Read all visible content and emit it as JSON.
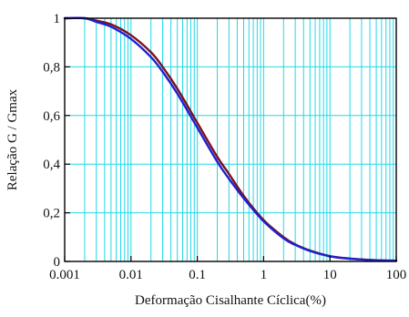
{
  "chart_data": {
    "type": "line",
    "title": "",
    "xlabel": "Deformação Cisalhante Cíclica(%)",
    "ylabel": "Relação G / Gmax",
    "x_scale": "log",
    "xlim": [
      0.001,
      100
    ],
    "ylim": [
      0,
      1
    ],
    "grid": true,
    "x_ticks": [
      {
        "value": 0.001,
        "label": "0.001"
      },
      {
        "value": 0.01,
        "label": "0.01"
      },
      {
        "value": 0.1,
        "label": "0.1"
      },
      {
        "value": 1,
        "label": "1"
      },
      {
        "value": 10,
        "label": "10"
      },
      {
        "value": 100,
        "label": "100"
      }
    ],
    "y_ticks": [
      {
        "value": 0,
        "label": "0"
      },
      {
        "value": 0.2,
        "label": "0,2"
      },
      {
        "value": 0.4,
        "label": "0,4"
      },
      {
        "value": 0.6,
        "label": "0,6"
      },
      {
        "value": 0.8,
        "label": "0,8"
      },
      {
        "value": 1,
        "label": "1"
      }
    ],
    "series": [
      {
        "color": "#7a1020",
        "x": [
          0.001,
          0.002,
          0.003,
          0.005,
          0.01,
          0.02,
          0.03,
          0.05,
          0.1,
          0.2,
          0.3,
          0.5,
          1,
          2,
          3,
          5,
          10,
          20,
          50,
          100
        ],
        "y": [
          1.0,
          1.0,
          0.99,
          0.975,
          0.93,
          0.86,
          0.8,
          0.71,
          0.57,
          0.43,
          0.36,
          0.27,
          0.17,
          0.1,
          0.07,
          0.045,
          0.022,
          0.012,
          0.005,
          0.003
        ]
      },
      {
        "color": "#2020d0",
        "x": [
          0.001,
          0.002,
          0.003,
          0.005,
          0.01,
          0.02,
          0.03,
          0.05,
          0.1,
          0.2,
          0.3,
          0.5,
          1,
          2,
          3,
          5,
          10,
          20,
          50,
          100
        ],
        "y": [
          1.0,
          1.0,
          0.985,
          0.965,
          0.915,
          0.84,
          0.78,
          0.69,
          0.55,
          0.41,
          0.34,
          0.26,
          0.165,
          0.095,
          0.068,
          0.043,
          0.021,
          0.011,
          0.005,
          0.003
        ]
      }
    ]
  }
}
